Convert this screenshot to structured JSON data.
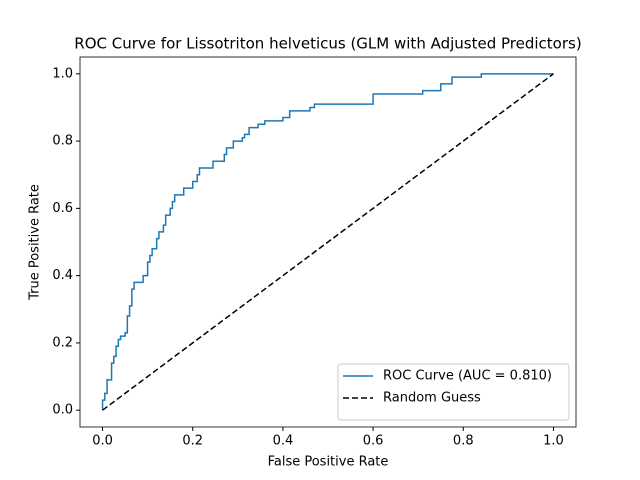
{
  "chart_data": {
    "type": "line",
    "title": "ROC Curve for Lissotriton helveticus (GLM with Adjusted Predictors)",
    "xlabel": "False Positive Rate",
    "ylabel": "True Positive Rate",
    "xlim": [
      -0.05,
      1.05
    ],
    "ylim": [
      -0.05,
      1.05
    ],
    "xticks": [
      {
        "value": 0,
        "label": "0.0"
      },
      {
        "value": 0.2,
        "label": "0.2"
      },
      {
        "value": 0.4,
        "label": "0.4"
      },
      {
        "value": 0.6,
        "label": "0.6"
      },
      {
        "value": 0.8,
        "label": "0.8"
      },
      {
        "value": 1,
        "label": "1.0"
      }
    ],
    "yticks": [
      {
        "value": 0,
        "label": "0.0"
      },
      {
        "value": 0.2,
        "label": "0.2"
      },
      {
        "value": 0.4,
        "label": "0.4"
      },
      {
        "value": 0.6,
        "label": "0.6"
      },
      {
        "value": 0.8,
        "label": "0.8"
      },
      {
        "value": 1,
        "label": "1.0"
      }
    ],
    "legend": "lower right",
    "series": [
      {
        "name": "ROC Curve (AUC = 0.810)",
        "color": "#1f77b4",
        "linestyle": "solid",
        "x": [
          0,
          0,
          0.005,
          0.005,
          0.01,
          0.01,
          0.02,
          0.02,
          0.025,
          0.025,
          0.03,
          0.03,
          0.035,
          0.035,
          0.04,
          0.04,
          0.05,
          0.05,
          0.055,
          0.055,
          0.06,
          0.06,
          0.065,
          0.065,
          0.07,
          0.07,
          0.09,
          0.09,
          0.1,
          0.1,
          0.105,
          0.105,
          0.11,
          0.11,
          0.12,
          0.12,
          0.125,
          0.125,
          0.135,
          0.135,
          0.14,
          0.14,
          0.15,
          0.15,
          0.155,
          0.155,
          0.16,
          0.16,
          0.18,
          0.18,
          0.2,
          0.2,
          0.21,
          0.21,
          0.215,
          0.215,
          0.245,
          0.245,
          0.27,
          0.27,
          0.275,
          0.275,
          0.29,
          0.29,
          0.31,
          0.31,
          0.315,
          0.315,
          0.325,
          0.325,
          0.345,
          0.345,
          0.36,
          0.36,
          0.4,
          0.4,
          0.415,
          0.415,
          0.46,
          0.46,
          0.47,
          0.47,
          0.6,
          0.6,
          0.71,
          0.71,
          0.75,
          0.75,
          0.775,
          0.775,
          0.84,
          0.84,
          1
        ],
        "y": [
          0,
          0.03,
          0.03,
          0.05,
          0.05,
          0.09,
          0.09,
          0.14,
          0.14,
          0.16,
          0.16,
          0.19,
          0.19,
          0.21,
          0.21,
          0.22,
          0.22,
          0.23,
          0.23,
          0.28,
          0.28,
          0.31,
          0.31,
          0.36,
          0.36,
          0.38,
          0.38,
          0.4,
          0.4,
          0.44,
          0.44,
          0.46,
          0.46,
          0.48,
          0.48,
          0.51,
          0.51,
          0.53,
          0.53,
          0.55,
          0.55,
          0.58,
          0.58,
          0.6,
          0.6,
          0.62,
          0.62,
          0.64,
          0.64,
          0.66,
          0.66,
          0.68,
          0.68,
          0.7,
          0.7,
          0.72,
          0.72,
          0.74,
          0.74,
          0.76,
          0.76,
          0.78,
          0.78,
          0.8,
          0.8,
          0.81,
          0.81,
          0.82,
          0.82,
          0.84,
          0.84,
          0.85,
          0.85,
          0.86,
          0.86,
          0.87,
          0.87,
          0.89,
          0.89,
          0.9,
          0.9,
          0.91,
          0.91,
          0.94,
          0.94,
          0.95,
          0.95,
          0.97,
          0.97,
          0.99,
          0.99,
          1,
          1
        ]
      },
      {
        "name": "Random Guess",
        "color": "#000000",
        "linestyle": "dashed",
        "x": [
          0,
          1
        ],
        "y": [
          0,
          1
        ]
      }
    ]
  }
}
